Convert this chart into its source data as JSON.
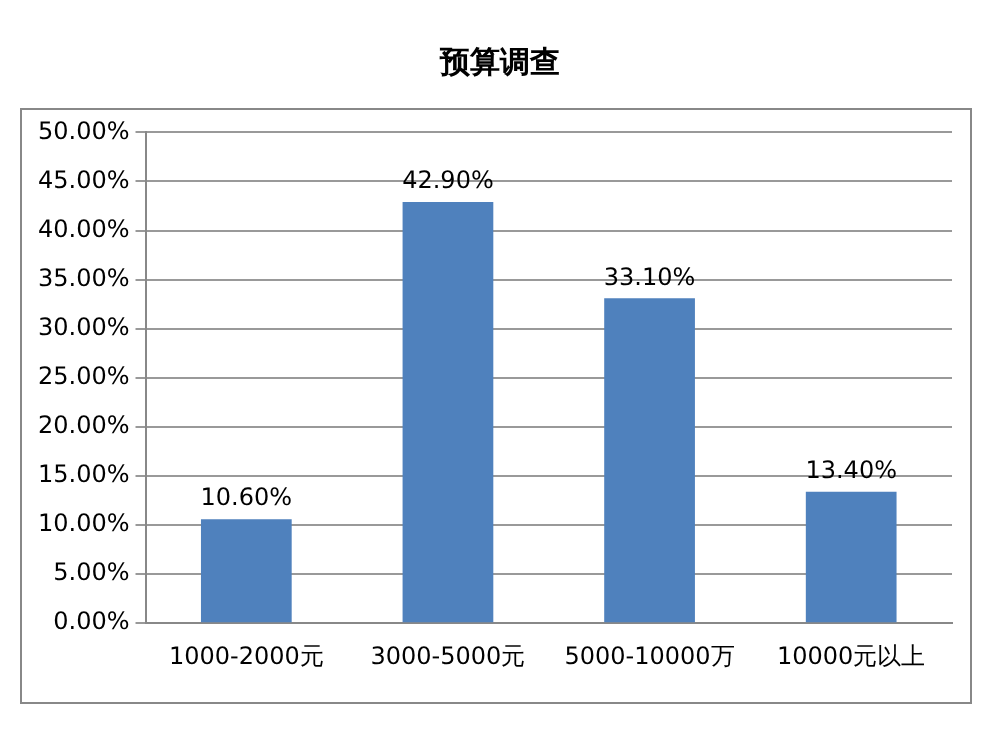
{
  "chart_data": {
    "type": "bar",
    "title": "预算调查",
    "categories": [
      "1000-2000元",
      "3000-5000元",
      "5000-10000万",
      "10000元以上"
    ],
    "values": [
      10.6,
      42.9,
      33.1,
      13.4
    ],
    "value_labels": [
      "10.60%",
      "42.90%",
      "33.10%",
      "13.40%"
    ],
    "color": "#4f81bd",
    "ylim": [
      0,
      50
    ],
    "yticks": [
      {
        "value": 0,
        "label": "0.00%"
      },
      {
        "value": 5,
        "label": "5.00%"
      },
      {
        "value": 10,
        "label": "10.00%"
      },
      {
        "value": 15,
        "label": "15.00%"
      },
      {
        "value": 20,
        "label": "20.00%"
      },
      {
        "value": 25,
        "label": "25.00%"
      },
      {
        "value": 30,
        "label": "30.00%"
      },
      {
        "value": 35,
        "label": "35.00%"
      },
      {
        "value": 40,
        "label": "40.00%"
      },
      {
        "value": 45,
        "label": "45.00%"
      },
      {
        "value": 50,
        "label": "50.00%"
      }
    ],
    "grid": "y",
    "legend": false
  }
}
